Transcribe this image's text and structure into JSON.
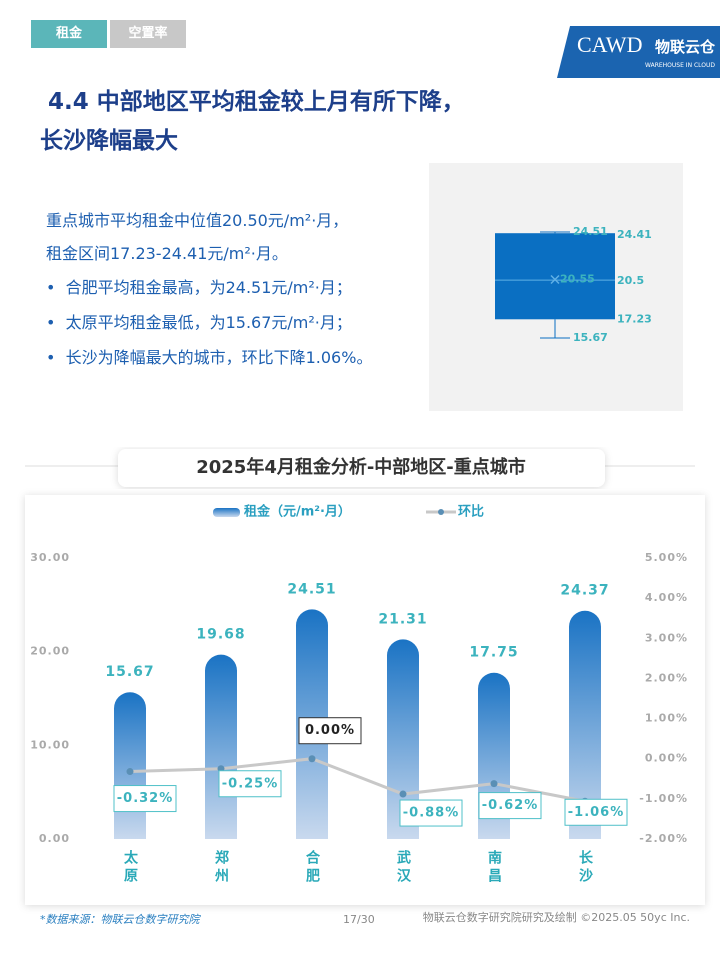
{
  "tabs": [
    "租金",
    "空置率"
  ],
  "logo": {
    "mark": "CAWD",
    "brand": "物联云仓",
    "subbrand": "WAREHOUSE IN CLOUD"
  },
  "header": {
    "title": [
      "4.4 中部地区平均租金较上月有所下降，",
      "长沙降幅最大"
    ]
  },
  "summary": {
    "lines": [
      "重点城市平均租金中位值20.50元/m²·月，",
      "租金区间17.23-24.41元/m²·月。"
    ],
    "bullets": [
      "合肥平均租金最高，为24.51元/m²·月；",
      "太原平均租金最低，为15.67元/m²·月；",
      "长沙为降幅最大的城市，环比下降1.06%。"
    ]
  },
  "chart_data": [
    {
      "type": "box",
      "color": "#0a6fc2",
      "max": 24.51,
      "q3": 24.41,
      "mean": 20.55,
      "median": 20.5,
      "q1": 17.23,
      "min": 15.67
    },
    {
      "type": "bar-line",
      "title": "2025年4月租金分析-中部地区-重点城市",
      "categories": [
        "太原",
        "郑州",
        "合肥",
        "武汉",
        "南昌",
        "长沙"
      ],
      "series": [
        {
          "name": "租金（元/m²·月）",
          "type": "bar",
          "color": "#1a73c4",
          "values": [
            15.67,
            19.68,
            24.51,
            21.31,
            17.75,
            24.37
          ]
        },
        {
          "name": "环比",
          "type": "line",
          "axis": "y2",
          "color": "#c8c8c8",
          "values": [
            -0.32,
            -0.25,
            0.0,
            -0.88,
            -0.62,
            -1.06
          ],
          "value_labels": [
            "-0.32%",
            "-0.25%",
            "0.00%",
            "-0.88%",
            "-0.62%",
            "-1.06%"
          ]
        }
      ],
      "ylim": [
        0,
        30
      ],
      "yticks": [
        {
          "value": 0,
          "label": "0.00"
        },
        {
          "value": 10,
          "label": "10.00"
        },
        {
          "value": 20,
          "label": "20.00"
        },
        {
          "value": 30,
          "label": "30.00"
        }
      ],
      "y2lim": [
        -2,
        5
      ],
      "y2ticks": [
        {
          "value": -2,
          "label": "-2.00%"
        },
        {
          "value": -1,
          "label": "-1.00%"
        },
        {
          "value": 0,
          "label": "0.00%"
        },
        {
          "value": 1,
          "label": "1.00%"
        },
        {
          "value": 2,
          "label": "2.00%"
        },
        {
          "value": 3,
          "label": "3.00%"
        },
        {
          "value": 4,
          "label": "4.00%"
        },
        {
          "value": 5,
          "label": "5.00%"
        }
      ]
    }
  ],
  "footer": {
    "source": "*数据来源：物联云仓数字研究院",
    "page": "17/30",
    "credit": "物联云仓数字研究院研究及绘制  ©2025.05 50yc Inc."
  }
}
